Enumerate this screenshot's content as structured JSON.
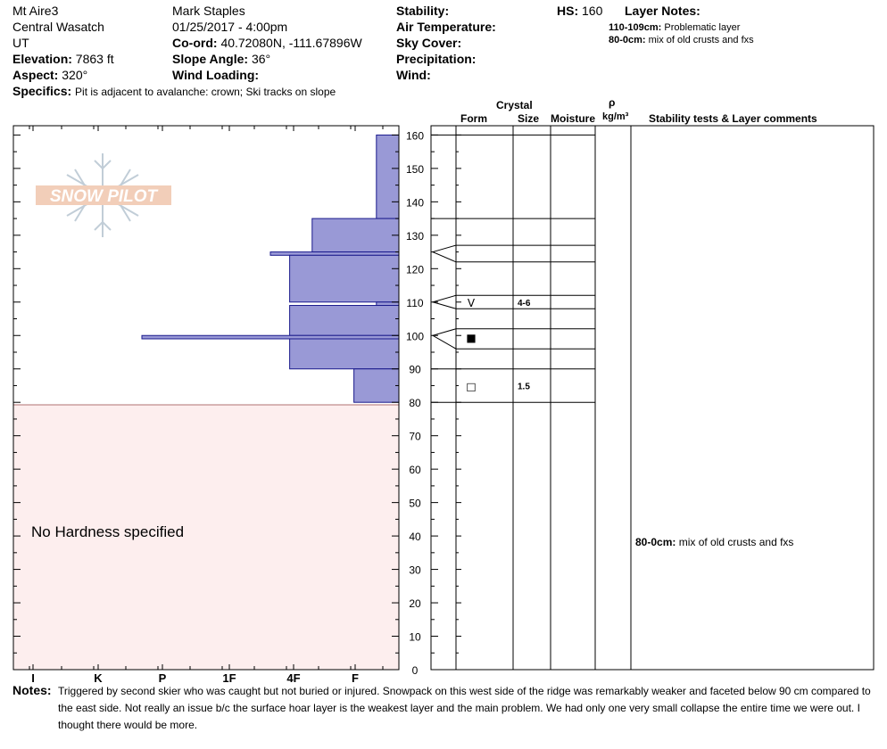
{
  "header": {
    "location": "Mt Aire3",
    "range": "Central Wasatch",
    "state": "UT",
    "elevation_label": "Elevation:",
    "elevation": "7863 ft",
    "aspect_label": "Aspect:",
    "aspect": "320°",
    "specifics_label": "Specifics:",
    "specifics": "Pit is adjacent to avalanche: crown; Ski tracks on slope",
    "observer": "Mark Staples",
    "datetime": "01/25/2017 - 4:00pm",
    "coord_label": "Co-ord:",
    "coord": "40.72080N, -111.67896W",
    "slope_label": "Slope Angle:",
    "slope": "36°",
    "wind_loading_label": "Wind Loading:",
    "stability_label": "Stability:",
    "air_temp_label": "Air Temperature:",
    "sky_label": "Sky Cover:",
    "precip_label": "Precipitation:",
    "wind_label": "Wind:",
    "hs_label": "HS:",
    "hs": "160",
    "layer_notes_label": "Layer Notes:",
    "layer_notes": [
      {
        "range": "110-109cm:",
        "text": "Problematic layer"
      },
      {
        "range": "80-0cm:",
        "text": "mix of old crusts and fxs"
      }
    ]
  },
  "logo": {
    "text": "SNOW PILOT"
  },
  "columns": {
    "crystal": "Crystal",
    "form": "Form",
    "size": "Size",
    "moisture": "Moisture",
    "rho": "ρ",
    "density_unit": "kg/m³",
    "stability": "Stability tests & Layer comments"
  },
  "no_hardness": "No Hardness specified",
  "notes_label": "Notes:",
  "notes": "Triggered by second skier who was caught but not buried or injured. Snowpack on this west side of the ridge was remarkably weaker and faceted below 90 cm compared to the east side. Not really an issue b/c the surface hoar layer is the weakest layer and the main problem. We had only one very small collapse the entire time we were out. I thought there would be more.",
  "stability_comments": [
    {
      "depth": 39,
      "range": "80-0cm:",
      "text": "mix of old crusts and fxs"
    }
  ],
  "colors": {
    "hardness_fill": "#9999d6",
    "hardness_stroke": "#1a1a8c",
    "no_hardness_fill": "#fdeeee"
  },
  "chart_data": {
    "type": "bar",
    "orientation": "horizontal",
    "ylabel": "",
    "ylim": [
      0,
      165
    ],
    "yticks": [
      0,
      10,
      20,
      30,
      40,
      50,
      60,
      70,
      80,
      90,
      100,
      110,
      120,
      130,
      140,
      150,
      160
    ],
    "hardness_scale": [
      "I",
      "K",
      "P",
      "1F",
      "4F",
      "F"
    ],
    "layers": [
      {
        "top": 160,
        "bottom": 135,
        "hardness_index": 0.35
      },
      {
        "top": 135,
        "bottom": 125,
        "hardness_index": 1.35
      },
      {
        "top": 125,
        "bottom": 124,
        "hardness_index": 2.0
      },
      {
        "top": 124,
        "bottom": 110,
        "hardness_index": 1.7
      },
      {
        "top": 110,
        "bottom": 109,
        "hardness_index": 0.35
      },
      {
        "top": 109,
        "bottom": 100,
        "hardness_index": 1.7
      },
      {
        "top": 100,
        "bottom": 99,
        "hardness_index": 4.0
      },
      {
        "top": 99,
        "bottom": 90,
        "hardness_index": 1.7
      },
      {
        "top": 90,
        "bottom": 80,
        "hardness_index": 0.7
      }
    ],
    "profile_lines": [
      160,
      135,
      127,
      122,
      112,
      108,
      102,
      96,
      90,
      80
    ],
    "grain_forms": [
      {
        "depth": 110,
        "symbol": "V",
        "size": "4-6"
      },
      {
        "depth": 99.5,
        "symbol": "■",
        "size": ""
      },
      {
        "depth": 85,
        "symbol": "□",
        "size": "1.5"
      }
    ]
  }
}
